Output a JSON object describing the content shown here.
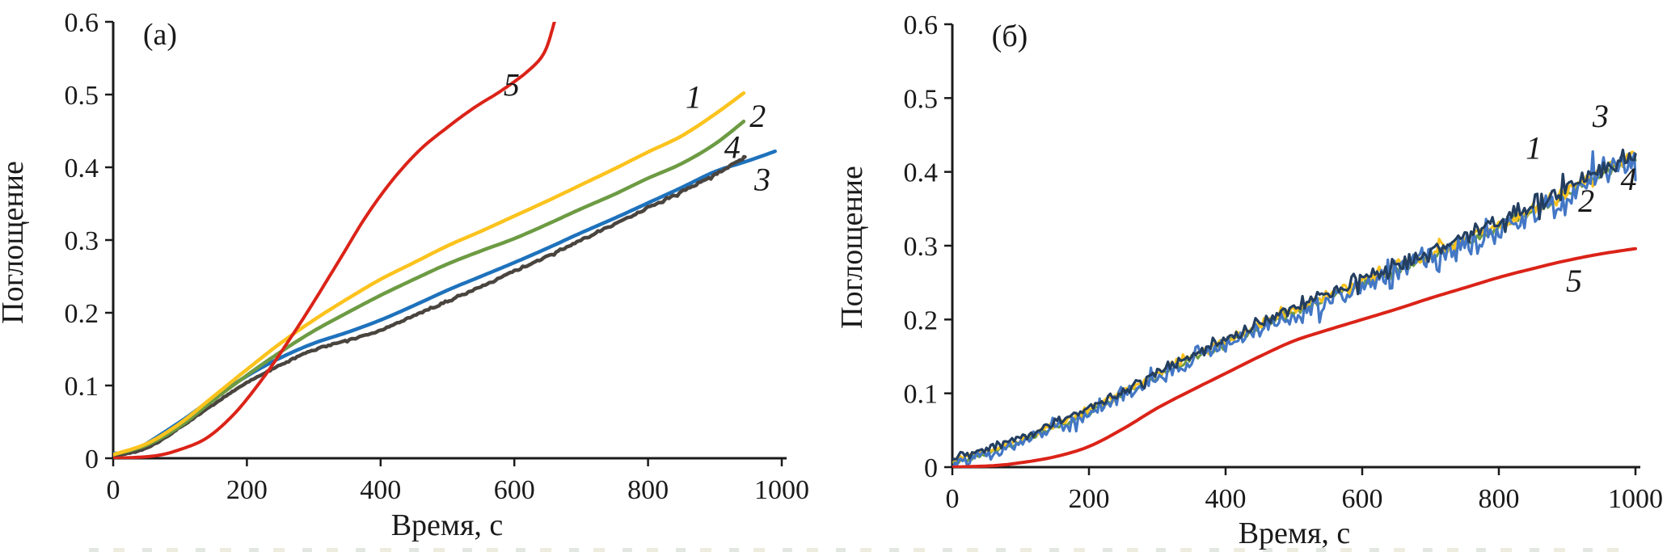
{
  "figure": {
    "background": "#ffffff",
    "axis_color": "#1a1a1a",
    "x_axis_label": "Время, с",
    "y_axis_label": "Поглощение"
  },
  "chart_data": [
    {
      "type": "line",
      "panel_letter": "(a)",
      "xlabel": "Время, с",
      "ylabel": "Поглощение",
      "xlim": [
        0,
        1000
      ],
      "ylim": [
        0,
        0.6
      ],
      "x_ticks": [
        "0",
        "200",
        "400",
        "600",
        "800",
        "1000"
      ],
      "y_ticks": [
        "0",
        "0.1",
        "0.2",
        "0.3",
        "0.4",
        "0.5",
        "0.6"
      ],
      "grid": false,
      "series": [
        {
          "name": "3",
          "color": "#1E72BC",
          "width": 4.5,
          "noise": 0,
          "label_at": [
            971,
            0.383
          ],
          "points": [
            [
              0,
              0.007
            ],
            [
              30,
              0.01
            ],
            [
              100,
              0.05
            ],
            [
              150,
              0.083
            ],
            [
              200,
              0.113
            ],
            [
              250,
              0.138
            ],
            [
              300,
              0.158
            ],
            [
              350,
              0.173
            ],
            [
              400,
              0.19
            ],
            [
              450,
              0.21
            ],
            [
              500,
              0.231
            ],
            [
              550,
              0.25
            ],
            [
              600,
              0.269
            ],
            [
              650,
              0.289
            ],
            [
              700,
              0.31
            ],
            [
              750,
              0.33
            ],
            [
              800,
              0.351
            ],
            [
              850,
              0.372
            ],
            [
              900,
              0.394
            ],
            [
              950,
              0.409
            ],
            [
              990,
              0.422
            ]
          ]
        },
        {
          "name": "4",
          "color": "#4A443F",
          "width": 4.5,
          "noise": 0.0012,
          "label_at": [
            926,
            0.427
          ],
          "points": [
            [
              0,
              0.003
            ],
            [
              50,
              0.014
            ],
            [
              100,
              0.042
            ],
            [
              150,
              0.074
            ],
            [
              200,
              0.104
            ],
            [
              250,
              0.128
            ],
            [
              300,
              0.149
            ],
            [
              350,
              0.162
            ],
            [
              400,
              0.176
            ],
            [
              450,
              0.196
            ],
            [
              500,
              0.215
            ],
            [
              550,
              0.236
            ],
            [
              600,
              0.257
            ],
            [
              650,
              0.278
            ],
            [
              700,
              0.3
            ],
            [
              750,
              0.322
            ],
            [
              800,
              0.344
            ],
            [
              850,
              0.366
            ],
            [
              900,
              0.39
            ],
            [
              945,
              0.414
            ]
          ]
        },
        {
          "name": "2",
          "color": "#6D9B43",
          "width": 4.5,
          "noise": 0,
          "label_at": [
            964,
            0.47
          ],
          "points": [
            [
              0,
              0.005
            ],
            [
              50,
              0.018
            ],
            [
              100,
              0.044
            ],
            [
              150,
              0.08
            ],
            [
              200,
              0.114
            ],
            [
              250,
              0.146
            ],
            [
              300,
              0.175
            ],
            [
              350,
              0.2
            ],
            [
              400,
              0.224
            ],
            [
              450,
              0.246
            ],
            [
              500,
              0.267
            ],
            [
              550,
              0.285
            ],
            [
              600,
              0.302
            ],
            [
              650,
              0.322
            ],
            [
              700,
              0.343
            ],
            [
              750,
              0.363
            ],
            [
              800,
              0.385
            ],
            [
              850,
              0.405
            ],
            [
              900,
              0.432
            ],
            [
              943,
              0.463
            ]
          ]
        },
        {
          "name": "1",
          "color": "#FCC31E",
          "width": 4.5,
          "noise": 0,
          "label_at": [
            868,
            0.496
          ],
          "points": [
            [
              0,
              0.005
            ],
            [
              50,
              0.02
            ],
            [
              100,
              0.048
            ],
            [
              150,
              0.085
            ],
            [
              200,
              0.122
            ],
            [
              250,
              0.158
            ],
            [
              300,
              0.19
            ],
            [
              350,
              0.219
            ],
            [
              400,
              0.246
            ],
            [
              450,
              0.269
            ],
            [
              500,
              0.292
            ],
            [
              550,
              0.312
            ],
            [
              600,
              0.333
            ],
            [
              650,
              0.354
            ],
            [
              700,
              0.376
            ],
            [
              750,
              0.398
            ],
            [
              800,
              0.421
            ],
            [
              850,
              0.443
            ],
            [
              900,
              0.473
            ],
            [
              943,
              0.502
            ]
          ]
        },
        {
          "name": "5",
          "color": "#DB2318",
          "width": 4.0,
          "noise": 0,
          "label_at": [
            596,
            0.513
          ],
          "points": [
            [
              0,
              0.0
            ],
            [
              60,
              0.003
            ],
            [
              100,
              0.012
            ],
            [
              140,
              0.028
            ],
            [
              180,
              0.06
            ],
            [
              220,
              0.105
            ],
            [
              260,
              0.158
            ],
            [
              300,
              0.215
            ],
            [
              340,
              0.275
            ],
            [
              380,
              0.335
            ],
            [
              420,
              0.385
            ],
            [
              460,
              0.425
            ],
            [
              500,
              0.455
            ],
            [
              540,
              0.482
            ],
            [
              580,
              0.505
            ],
            [
              620,
              0.532
            ],
            [
              645,
              0.558
            ],
            [
              660,
              0.6
            ]
          ]
        }
      ]
    },
    {
      "type": "line",
      "panel_letter": "(б)",
      "xlabel": "Время, с",
      "ylabel": "Поглощение",
      "xlim": [
        0,
        1000
      ],
      "ylim": [
        0,
        0.6
      ],
      "x_ticks": [
        "0",
        "200",
        "400",
        "600",
        "800",
        "1000"
      ],
      "y_ticks": [
        "0",
        "0.1",
        "0.2",
        "0.3",
        "0.4",
        "0.5",
        "0.6"
      ],
      "grid": false,
      "series": [
        {
          "name": "2",
          "color": "#6D9B43",
          "width": 3.0,
          "noise": 0.005,
          "offset": -0.002,
          "label_at": [
            928,
            0.36
          ],
          "points": [
            [
              0,
              0.008
            ],
            [
              50,
              0.02
            ],
            [
              100,
              0.036
            ],
            [
              150,
              0.055
            ],
            [
              200,
              0.076
            ],
            [
              250,
              0.1
            ],
            [
              300,
              0.124
            ],
            [
              350,
              0.148
            ],
            [
              400,
              0.17
            ],
            [
              450,
              0.191
            ],
            [
              500,
              0.211
            ],
            [
              550,
              0.231
            ],
            [
              600,
              0.25
            ],
            [
              650,
              0.268
            ],
            [
              700,
              0.287
            ],
            [
              750,
              0.306
            ],
            [
              800,
              0.326
            ],
            [
              850,
              0.348
            ],
            [
              900,
              0.372
            ],
            [
              950,
              0.398
            ],
            [
              1000,
              0.42
            ]
          ]
        },
        {
          "name": "1",
          "color": "#FCC31E",
          "width": 3.2,
          "noise": 0.007,
          "offset": 0.002,
          "label_at": [
            851,
            0.432
          ],
          "points": [
            [
              0,
              0.008
            ],
            [
              50,
              0.02
            ],
            [
              100,
              0.036
            ],
            [
              150,
              0.055
            ],
            [
              200,
              0.076
            ],
            [
              250,
              0.1
            ],
            [
              300,
              0.124
            ],
            [
              350,
              0.148
            ],
            [
              400,
              0.17
            ],
            [
              450,
              0.191
            ],
            [
              500,
              0.211
            ],
            [
              550,
              0.231
            ],
            [
              600,
              0.25
            ],
            [
              650,
              0.268
            ],
            [
              700,
              0.287
            ],
            [
              750,
              0.306
            ],
            [
              800,
              0.326
            ],
            [
              850,
              0.348
            ],
            [
              900,
              0.372
            ],
            [
              950,
              0.398
            ],
            [
              1000,
              0.42
            ]
          ]
        },
        {
          "name": "3",
          "color": "#4377C5",
          "width": 3.2,
          "noise": 0.015,
          "offset": -0.004,
          "label_at": [
            949,
            0.475
          ],
          "points": [
            [
              0,
              0.008
            ],
            [
              50,
              0.02
            ],
            [
              100,
              0.036
            ],
            [
              150,
              0.055
            ],
            [
              200,
              0.076
            ],
            [
              250,
              0.1
            ],
            [
              300,
              0.124
            ],
            [
              350,
              0.148
            ],
            [
              400,
              0.17
            ],
            [
              450,
              0.191
            ],
            [
              500,
              0.211
            ],
            [
              550,
              0.231
            ],
            [
              600,
              0.25
            ],
            [
              650,
              0.268
            ],
            [
              700,
              0.287
            ],
            [
              750,
              0.306
            ],
            [
              800,
              0.326
            ],
            [
              850,
              0.348
            ],
            [
              900,
              0.372
            ],
            [
              950,
              0.398
            ],
            [
              1000,
              0.42
            ]
          ]
        },
        {
          "name": "4",
          "color": "#233E60",
          "width": 3.2,
          "noise": 0.009,
          "offset": 0.004,
          "label_at": [
            990,
            0.39
          ],
          "points": [
            [
              0,
              0.008
            ],
            [
              50,
              0.02
            ],
            [
              100,
              0.036
            ],
            [
              150,
              0.055
            ],
            [
              200,
              0.076
            ],
            [
              250,
              0.1
            ],
            [
              300,
              0.124
            ],
            [
              350,
              0.148
            ],
            [
              400,
              0.17
            ],
            [
              450,
              0.191
            ],
            [
              500,
              0.211
            ],
            [
              550,
              0.231
            ],
            [
              600,
              0.25
            ],
            [
              650,
              0.268
            ],
            [
              700,
              0.287
            ],
            [
              750,
              0.306
            ],
            [
              800,
              0.326
            ],
            [
              850,
              0.348
            ],
            [
              900,
              0.372
            ],
            [
              950,
              0.398
            ],
            [
              1000,
              0.42
            ]
          ]
        },
        {
          "name": "5",
          "color": "#DB2318",
          "width": 4.0,
          "noise": 0,
          "label_at": [
            910,
            0.252
          ],
          "points": [
            [
              0,
              0.0
            ],
            [
              60,
              0.002
            ],
            [
              100,
              0.006
            ],
            [
              150,
              0.014
            ],
            [
              200,
              0.028
            ],
            [
              250,
              0.052
            ],
            [
              300,
              0.08
            ],
            [
              350,
              0.104
            ],
            [
              400,
              0.127
            ],
            [
              450,
              0.15
            ],
            [
              500,
              0.171
            ],
            [
              550,
              0.186
            ],
            [
              600,
              0.2
            ],
            [
              650,
              0.214
            ],
            [
              700,
              0.229
            ],
            [
              750,
              0.243
            ],
            [
              800,
              0.257
            ],
            [
              850,
              0.269
            ],
            [
              900,
              0.28
            ],
            [
              950,
              0.289
            ],
            [
              1000,
              0.296
            ]
          ]
        }
      ]
    }
  ]
}
